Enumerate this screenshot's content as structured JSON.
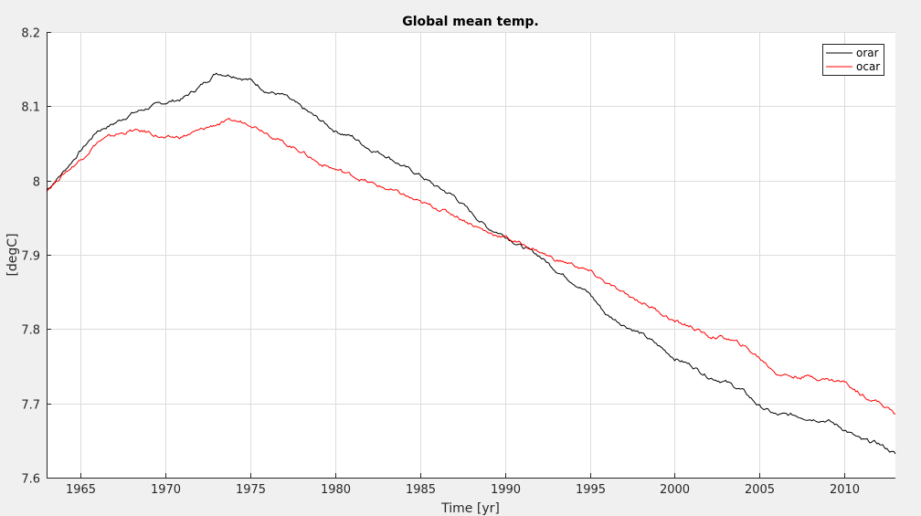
{
  "chart_data": {
    "type": "line",
    "title": "Global mean temp.",
    "xlabel": "Time [yr]",
    "ylabel": "[degC]",
    "xlim": [
      1963,
      2013
    ],
    "ylim": [
      7.6,
      8.2
    ],
    "grid": true,
    "legend_position": "top-right",
    "xticks": [
      1965,
      1970,
      1975,
      1980,
      1985,
      1990,
      1995,
      2000,
      2005,
      2010
    ],
    "xtick_labels": [
      "1965",
      "1970",
      "1975",
      "1980",
      "1985",
      "1990",
      "1995",
      "2000",
      "2005",
      "2010"
    ],
    "yticks": [
      7.6,
      7.7,
      7.8,
      7.9,
      8.0,
      8.1,
      8.2
    ],
    "ytick_labels": [
      "7.6",
      "7.7",
      "7.8",
      "7.9",
      "8",
      "8.1",
      "8.2"
    ],
    "x": [
      1963,
      1964,
      1965,
      1966,
      1967,
      1968,
      1969,
      1970,
      1971,
      1972,
      1973,
      1974,
      1975,
      1976,
      1977,
      1978,
      1979,
      1980,
      1981,
      1982,
      1983,
      1984,
      1985,
      1986,
      1987,
      1988,
      1989,
      1990,
      1991,
      1992,
      1993,
      1994,
      1995,
      1996,
      1997,
      1998,
      1999,
      2000,
      2001,
      2002,
      2003,
      2004,
      2005,
      2006,
      2007,
      2008,
      2009,
      2010,
      2011,
      2012,
      2013
    ],
    "series": [
      {
        "name": "orar",
        "color": "#000000",
        "values": [
          7.987,
          8.012,
          8.04,
          8.067,
          8.077,
          8.09,
          8.098,
          8.105,
          8.11,
          8.126,
          8.145,
          8.142,
          8.135,
          8.12,
          8.114,
          8.098,
          8.083,
          8.067,
          8.059,
          8.043,
          8.034,
          8.019,
          8.007,
          7.991,
          7.979,
          7.957,
          7.936,
          7.926,
          7.911,
          7.899,
          7.88,
          7.864,
          7.847,
          7.819,
          7.806,
          7.794,
          7.778,
          7.761,
          7.751,
          7.736,
          7.729,
          7.717,
          7.696,
          7.684,
          7.684,
          7.68,
          7.677,
          7.665,
          7.65,
          7.646,
          7.632
        ]
      },
      {
        "name": "ocar",
        "color": "#ff0000",
        "values": [
          7.987,
          8.009,
          8.028,
          8.052,
          8.061,
          8.067,
          8.065,
          8.056,
          8.059,
          8.067,
          8.076,
          8.08,
          8.077,
          8.065,
          8.05,
          8.04,
          8.024,
          8.015,
          8.007,
          7.997,
          7.989,
          7.981,
          7.97,
          7.963,
          7.954,
          7.942,
          7.93,
          7.924,
          7.914,
          7.905,
          7.893,
          7.887,
          7.877,
          7.862,
          7.847,
          7.837,
          7.825,
          7.81,
          7.803,
          7.79,
          7.788,
          7.778,
          7.761,
          7.741,
          7.736,
          7.736,
          7.732,
          7.729,
          7.712,
          7.702,
          7.686
        ]
      }
    ]
  }
}
